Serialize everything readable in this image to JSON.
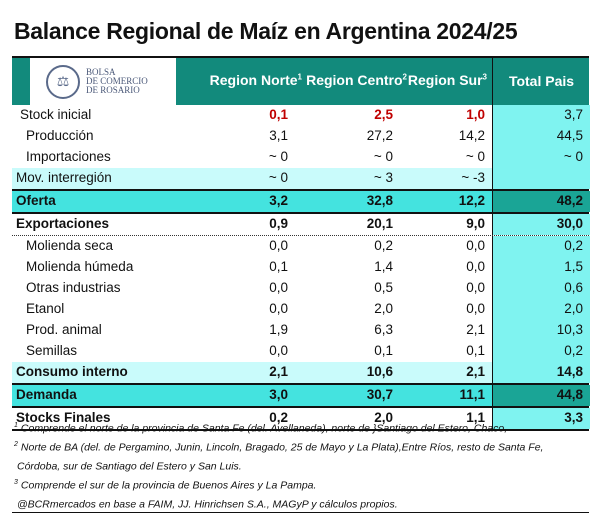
{
  "title": "Balance Regional de Maíz en Argentina 2024/25",
  "logo": {
    "line1": "BOLSA",
    "line2": "DE COMERCIO",
    "line3": "DE ROSARIO"
  },
  "headers": {
    "norte": "Region Norte",
    "norte_sup": "1",
    "centro": "Region Centro",
    "centro_sup": "2",
    "sur": "Region Sur",
    "sur_sup": "3",
    "total": "Total Pais"
  },
  "rows": [
    {
      "label": "Stock inicial",
      "norte": "0,1",
      "centro": "2,5",
      "sur": "1,0",
      "total": "3,7"
    },
    {
      "label": "Producción",
      "norte": "3,1",
      "centro": "27,2",
      "sur": "14,2",
      "total": "44,5"
    },
    {
      "label": "Importaciones",
      "norte": "~ 0",
      "centro": "~ 0",
      "sur": "~ 0",
      "total": "~ 0"
    },
    {
      "label": "Mov. interregión",
      "norte": "~ 0",
      "centro": "~ 3",
      "sur": "~ -3",
      "total": ""
    },
    {
      "label": "Oferta",
      "norte": "3,2",
      "centro": "32,8",
      "sur": "12,2",
      "total": "48,2"
    },
    {
      "label": "Exportaciones",
      "norte": "0,9",
      "centro": "20,1",
      "sur": "9,0",
      "total": "30,0"
    },
    {
      "label": "Molienda seca",
      "norte": "0,0",
      "centro": "0,2",
      "sur": "0,0",
      "total": "0,2"
    },
    {
      "label": "Molienda húmeda",
      "norte": "0,1",
      "centro": "1,4",
      "sur": "0,0",
      "total": "1,5"
    },
    {
      "label": "Otras industrias",
      "norte": "0,0",
      "centro": "0,5",
      "sur": "0,0",
      "total": "0,6"
    },
    {
      "label": "Etanol",
      "norte": "0,0",
      "centro": "2,0",
      "sur": "0,0",
      "total": "2,0"
    },
    {
      "label": "Prod. animal",
      "norte": "1,9",
      "centro": "6,3",
      "sur": "2,1",
      "total": "10,3"
    },
    {
      "label": "Semillas",
      "norte": "0,0",
      "centro": "0,1",
      "sur": "0,1",
      "total": "0,2"
    },
    {
      "label": "Consumo interno",
      "norte": "2,1",
      "centro": "10,6",
      "sur": "2,1",
      "total": "14,8"
    },
    {
      "label": "Demanda",
      "norte": "3,0",
      "centro": "30,7",
      "sur": "11,1",
      "total": "44,8"
    },
    {
      "label": "Stocks Finales",
      "norte": "0,2",
      "centro": "2,0",
      "sur": "1,1",
      "total": "3,3"
    }
  ],
  "footnotes": [
    {
      "sup": "1",
      "text": "Comprende el norte de la provincia de Santa Fe (del. Avellaneda), norte de }Santiago del Estero, Chaco,"
    },
    {
      "sup": "2",
      "text": "Norte de BA (del. de Pergamino, Junin, Lincoln, Bragado, 25 de Mayo y La Plata),Entre Ríos, resto de Santa Fe,"
    },
    {
      "sup": "",
      "text": "Córdoba, sur de Santiago del Estero y San Luis."
    },
    {
      "sup": "3",
      "text": "Comprende el sur de la provincia de Buenos Aires y La Pampa."
    },
    {
      "sup": "",
      "text": "@BCRmercados en base a FAIM, JJ. Hinrichsen S.A., MAGyP y cálculos propios."
    }
  ],
  "colors": {
    "header": "#128a7c",
    "total_col": "#7ff3f0",
    "band": "#c9fbfb",
    "strong": "#44e3df",
    "red": "#c00000"
  }
}
